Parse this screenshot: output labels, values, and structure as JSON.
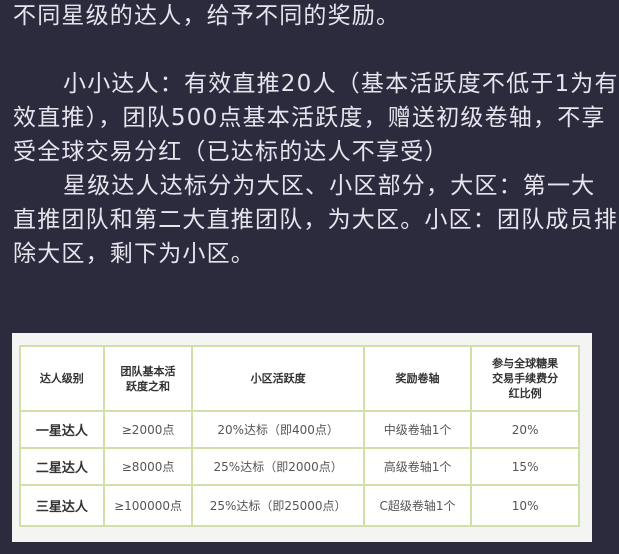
{
  "paragraphs": [
    "不同星级的达人，给予不同的奖励。",
    "小小达人：有效直推20人（基本活跃度不低于1为有",
    "效直推），团队500点基本活跃度，赠送初级卷轴，不享",
    "受全球交易分红（已达标的达人不享受）",
    "星级达人达标分为大区、小区部分，大区：第一大",
    "直推团队和第二大直推团队，为大区。小区：团队成员排",
    "除大区，剩下为小区。"
  ],
  "table": {
    "headers": [
      "达人级别",
      "团队基本活跃度之和",
      "小区活跃度",
      "奖励卷轴",
      "参与全球糖果交易手续费分红比例"
    ],
    "rows": [
      [
        "一星达人",
        "≥2000点",
        "20%达标（即400点）",
        "中级卷轴1个",
        "20%"
      ],
      [
        "二星达人",
        "≥8000点",
        "25%达标（即2000点）",
        "高级卷轴1个",
        "15%"
      ],
      [
        "三星达人",
        "≥100000点",
        "25%达标（即25000点）",
        "C超级卷轴1个",
        "10%"
      ]
    ]
  }
}
